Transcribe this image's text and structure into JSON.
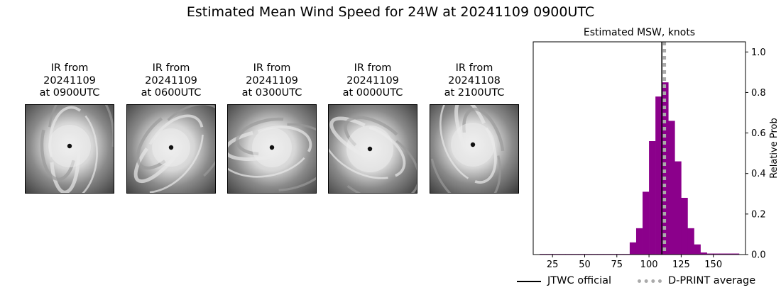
{
  "figure": {
    "title": "Estimated Mean Wind Speed for 24W at 20241109 0900UTC"
  },
  "ir_panels": [
    {
      "line1": "IR from",
      "line2": "20241109",
      "line3": "at 0900UTC",
      "icon": "typhoon-ir-image"
    },
    {
      "line1": "IR from",
      "line2": "20241109",
      "line3": "at 0600UTC",
      "icon": "typhoon-ir-image"
    },
    {
      "line1": "IR from",
      "line2": "20241109",
      "line3": "at 0300UTC",
      "icon": "typhoon-ir-image"
    },
    {
      "line1": "IR from",
      "line2": "20241109",
      "line3": "at 0000UTC",
      "icon": "typhoon-ir-image"
    },
    {
      "line1": "IR from",
      "line2": "20241108",
      "line3": "at 2100UTC",
      "icon": "typhoon-ir-image"
    }
  ],
  "chart_data": {
    "type": "bar",
    "title": "Estimated MSW, knots",
    "xlabel": "",
    "ylabel": "Relative Prob",
    "xlim": [
      10,
      175
    ],
    "ylim": [
      0,
      1.05
    ],
    "bin_width": 5,
    "xticks": [
      25,
      50,
      75,
      100,
      125,
      150
    ],
    "yticks": [
      0.0,
      0.2,
      0.4,
      0.6,
      0.8,
      1.0
    ],
    "ytick_labels": [
      "0.0",
      "0.2",
      "0.4",
      "0.6",
      "0.8",
      "1.0"
    ],
    "bin_starts": [
      15,
      20,
      25,
      30,
      35,
      40,
      45,
      50,
      55,
      60,
      65,
      70,
      75,
      80,
      85,
      90,
      95,
      100,
      105,
      110,
      115,
      120,
      125,
      130,
      135,
      140,
      145,
      150,
      155,
      160,
      165
    ],
    "values": [
      0.003,
      0.003,
      0.003,
      0.003,
      0.003,
      0.003,
      0.003,
      0.003,
      0.003,
      0.003,
      0.003,
      0.003,
      0.003,
      0.003,
      0.06,
      0.13,
      0.31,
      0.56,
      0.78,
      0.85,
      0.66,
      0.46,
      0.28,
      0.13,
      0.05,
      0.01,
      0.005,
      0.005,
      0.005,
      0.005,
      0.005
    ],
    "bar_color": "#8b008b",
    "jtwc_official": 110,
    "dprint_average": 112,
    "jtwc_color": "#000000",
    "dprint_color": "#aaaaaa",
    "grid": false,
    "legend": "bottom"
  },
  "legend": {
    "jtwc_label": "JTWC official",
    "dprint_label": "D-PRINT average"
  }
}
